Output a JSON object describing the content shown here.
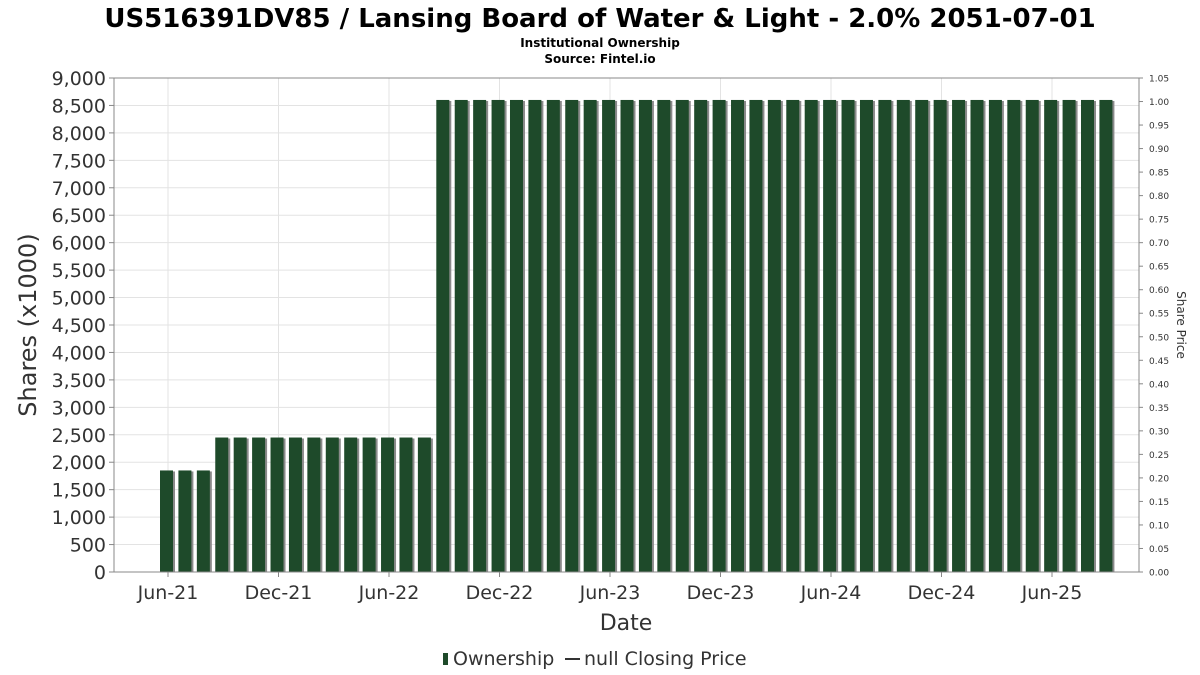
{
  "chart_data": {
    "type": "bar",
    "title": "US516391DV85 / Lansing Board of Water & Light - 2.0% 2051-07-01",
    "subtitle": "Institutional Ownership",
    "source": "Source: Fintel.io",
    "xlabel": "Date",
    "ylabel": "Shares (x1000)",
    "y2label": "Share Price",
    "ylim": [
      0,
      9000
    ],
    "y_ticks": [
      "0",
      "500",
      "1,000",
      "1,500",
      "2,000",
      "2,500",
      "3,000",
      "3,500",
      "4,000",
      "4,500",
      "5,000",
      "5,500",
      "6,000",
      "6,500",
      "7,000",
      "7,500",
      "8,000",
      "8,500",
      "9,000"
    ],
    "y2lim": [
      0,
      1.05
    ],
    "y2_ticks": [
      "0.00",
      "0.05",
      "0.10",
      "0.15",
      "0.20",
      "0.25",
      "0.30",
      "0.35",
      "0.40",
      "0.45",
      "0.50",
      "0.55",
      "0.60",
      "0.65",
      "0.70",
      "0.75",
      "0.80",
      "0.85",
      "0.90",
      "0.95",
      "1.00",
      "1.05"
    ],
    "x_ticks": [
      "Jun-21",
      "Dec-21",
      "Jun-22",
      "Dec-22",
      "Jun-23",
      "Dec-23",
      "Jun-24",
      "Dec-24",
      "Jun-25"
    ],
    "grid": true,
    "legend_position": "bottom",
    "legend": {
      "ownership": "Ownership",
      "price": "null Closing Price"
    },
    "colors": {
      "bar": "#1e4a2a",
      "bar_shadow": "#8a8a8a",
      "grid": "#e3e3e3",
      "axis": "#888888"
    },
    "series": [
      {
        "name": "Ownership",
        "values": [
          1850,
          1850,
          1850,
          2450,
          2450,
          2450,
          2450,
          2450,
          2450,
          2450,
          2450,
          2450,
          2450,
          2450,
          2450,
          8600,
          8600,
          8600,
          8600,
          8600,
          8600,
          8600,
          8600,
          8600,
          8600,
          8600,
          8600,
          8600,
          8600,
          8600,
          8600,
          8600,
          8600,
          8600,
          8600,
          8600,
          8600,
          8600,
          8600,
          8600,
          8600,
          8600,
          8600,
          8600,
          8600,
          8600,
          8600,
          8600,
          8600,
          8600,
          8600,
          8600
        ]
      }
    ]
  }
}
